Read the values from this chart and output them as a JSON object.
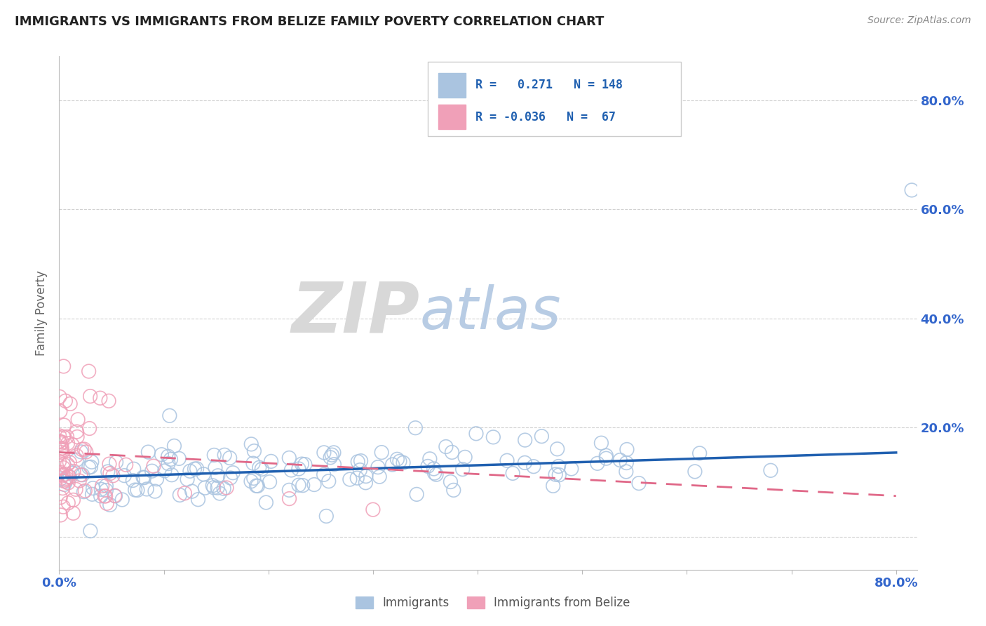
{
  "title": "IMMIGRANTS VS IMMIGRANTS FROM BELIZE FAMILY POVERTY CORRELATION CHART",
  "source_text": "Source: ZipAtlas.com",
  "ylabel": "Family Poverty",
  "xlim": [
    0.0,
    0.82
  ],
  "ylim": [
    -0.06,
    0.88
  ],
  "x_ticks": [
    0.0,
    0.1,
    0.2,
    0.3,
    0.4,
    0.5,
    0.6,
    0.7,
    0.8
  ],
  "y_ticks": [
    0.0,
    0.2,
    0.4,
    0.6,
    0.8
  ],
  "legend_text1": "R =   0.271   N = 148",
  "legend_text2": "R = -0.036   N =  67",
  "blue_scatter_color": "#aac4e0",
  "blue_line_color": "#2060b0",
  "pink_scatter_color": "#f0a0b8",
  "pink_line_color": "#e06888",
  "zip_watermark_color": "#d8d8d8",
  "atlas_watermark_color": "#b8cce4",
  "title_color": "#222222",
  "tick_color": "#3366cc",
  "source_color": "#888888",
  "ylabel_color": "#666666",
  "background_color": "#ffffff",
  "grid_color": "#cccccc",
  "blue_intercept": 0.108,
  "blue_slope": 0.058,
  "pink_intercept": 0.155,
  "pink_slope": -0.1,
  "blue_N": 148,
  "pink_N": 67
}
